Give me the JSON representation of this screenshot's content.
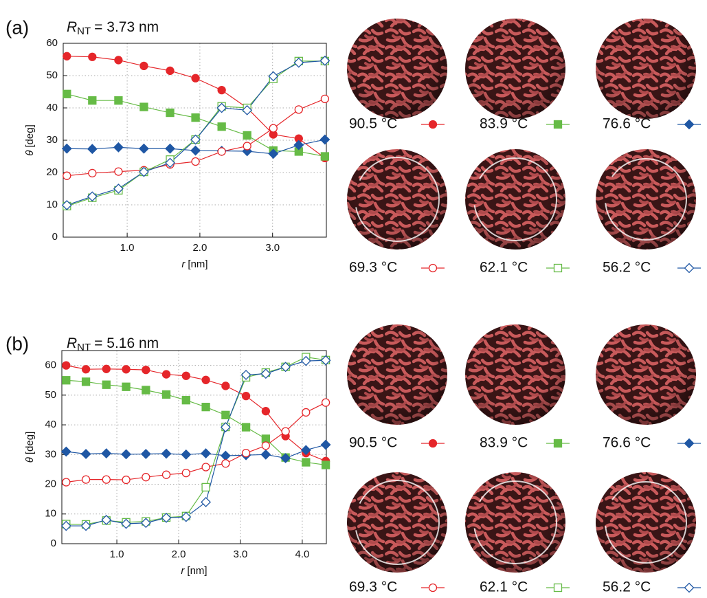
{
  "chart_data": [
    {
      "type": "line",
      "panel_label": "(a)",
      "title": {
        "symbol": "R",
        "subscript": "NT",
        "text": "= 3.73 nm"
      },
      "x_label": {
        "symbol": "r",
        "unit": "[nm]"
      },
      "y_label": {
        "symbol": "θ",
        "unit": "[deg]"
      },
      "x": [
        0.17,
        0.52,
        0.88,
        1.23,
        1.59,
        1.94,
        2.3,
        2.65,
        3.01,
        3.36,
        3.72
      ],
      "xlim": [
        0.12,
        3.74
      ],
      "xticks": [
        {
          "value": 1,
          "label": "1.0"
        },
        {
          "value": 2,
          "label": "2.0"
        },
        {
          "value": 3,
          "label": "3.0"
        }
      ],
      "ylim": [
        0,
        60
      ],
      "yticks": [
        0,
        10,
        20,
        30,
        40,
        50,
        60
      ],
      "grid": true,
      "series": [
        {
          "name": "90.5 °C",
          "color": "#e5262a",
          "marker": "circle",
          "filled": true,
          "values": [
            56,
            55.8,
            54.8,
            53,
            51.5,
            49.2,
            45.5,
            40,
            31.8,
            30.5,
            24.5
          ]
        },
        {
          "name": "83.9 °C",
          "color": "#66bb46",
          "marker": "square",
          "filled": true,
          "values": [
            44.3,
            42.3,
            42.3,
            40.3,
            38.5,
            37,
            34.2,
            31.5,
            26.8,
            26.5,
            25
          ]
        },
        {
          "name": "76.6 °C",
          "color": "#1f57a4",
          "marker": "diamond",
          "filled": true,
          "values": [
            27.4,
            27.3,
            27.8,
            27.4,
            27.4,
            26.8,
            26.7,
            26.6,
            25.8,
            28.5,
            30.2
          ]
        },
        {
          "name": "69.3 °C",
          "color": "#e5262a",
          "marker": "circle",
          "filled": false,
          "values": [
            19,
            19.8,
            20.3,
            20.7,
            22.5,
            23.4,
            26.5,
            28.2,
            33.7,
            39.5,
            42.8
          ]
        },
        {
          "name": "62.1 °C",
          "color": "#66bb46",
          "marker": "square",
          "filled": false,
          "values": [
            9.6,
            12.2,
            14.5,
            20.2,
            24,
            30.2,
            40.5,
            40,
            49,
            54.5,
            54.5
          ]
        },
        {
          "name": "56.2 °C",
          "color": "#1f57a4",
          "marker": "diamond",
          "filled": false,
          "values": [
            9.9,
            12.6,
            15,
            20.2,
            23,
            30.2,
            40,
            39.3,
            49.8,
            54,
            54.6
          ]
        }
      ]
    },
    {
      "type": "line",
      "panel_label": "(b)",
      "title": {
        "symbol": "R",
        "subscript": "NT",
        "text": "= 5.16 nm"
      },
      "x_label": {
        "symbol": "r",
        "unit": "[nm]"
      },
      "y_label": {
        "symbol": "θ",
        "unit": "[deg]"
      },
      "x": [
        0.18,
        0.5,
        0.83,
        1.15,
        1.47,
        1.8,
        2.12,
        2.44,
        2.76,
        3.09,
        3.41,
        3.73,
        4.06,
        4.38
      ],
      "xlim": [
        0.11,
        4.39
      ],
      "xticks": [
        {
          "value": 1,
          "label": "1.0"
        },
        {
          "value": 2,
          "label": "2.0"
        },
        {
          "value": 3,
          "label": "3.0"
        },
        {
          "value": 4,
          "label": "4.0"
        }
      ],
      "ylim": [
        0,
        65
      ],
      "yticks": [
        0,
        10,
        20,
        30,
        40,
        50,
        60
      ],
      "grid": true,
      "series": [
        {
          "name": "90.5 °C",
          "color": "#e5262a",
          "marker": "circle",
          "filled": true,
          "values": [
            60,
            58.7,
            58.8,
            58.7,
            58.5,
            57,
            56.5,
            55.1,
            53.1,
            49.7,
            44.6,
            36.2,
            30.5,
            27.8
          ]
        },
        {
          "name": "83.9 °C",
          "color": "#66bb46",
          "marker": "square",
          "filled": true,
          "values": [
            55,
            54.5,
            53.5,
            52.8,
            51.7,
            50.2,
            48.3,
            46,
            43.3,
            39.2,
            35.3,
            29,
            27.4,
            26.5
          ]
        },
        {
          "name": "76.6 °C",
          "color": "#1f57a4",
          "marker": "diamond",
          "filled": true,
          "values": [
            31,
            30.2,
            30.4,
            30.1,
            30.2,
            30.3,
            30,
            30.4,
            29.6,
            29.8,
            30,
            28.8,
            31.5,
            33.3
          ]
        },
        {
          "name": "69.3 °C",
          "color": "#e5262a",
          "marker": "circle",
          "filled": false,
          "values": [
            20.7,
            21.6,
            21.6,
            21.5,
            22.4,
            23.2,
            23.8,
            25.8,
            27,
            30.5,
            33,
            37.8,
            44.2,
            47.5
          ]
        },
        {
          "name": "62.1 °C",
          "color": "#66bb46",
          "marker": "square",
          "filled": false,
          "values": [
            6.6,
            6.5,
            7.8,
            7.2,
            7.5,
            8.8,
            9.3,
            19,
            39.3,
            56,
            57.6,
            59.5,
            62.8,
            61.8
          ]
        },
        {
          "name": "56.2 °C",
          "color": "#1f57a4",
          "marker": "diamond",
          "filled": false,
          "values": [
            6,
            6,
            8,
            6.7,
            7,
            8.7,
            9,
            14,
            39.2,
            56.8,
            57.2,
            59.5,
            61.5,
            61.7
          ]
        }
      ]
    }
  ]
}
